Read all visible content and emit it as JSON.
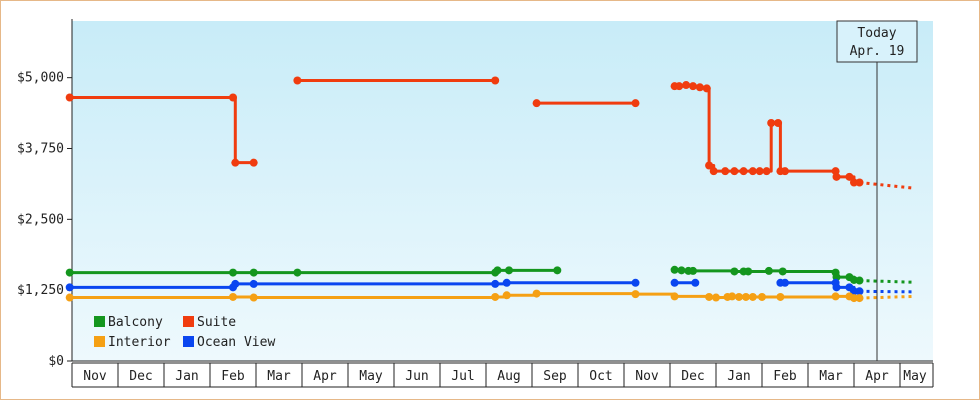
{
  "chart_data": {
    "type": "line",
    "title": "",
    "xlabel": "",
    "ylabel": "",
    "ylim": [
      0,
      6000
    ],
    "y_ticks": [
      {
        "value": 0,
        "label": "$0"
      },
      {
        "value": 1250,
        "label": "$1,250"
      },
      {
        "value": 2500,
        "label": "$2,500"
      },
      {
        "value": 3750,
        "label": "$3,750"
      },
      {
        "value": 5000,
        "label": "$5,000"
      }
    ],
    "x_months": [
      "Nov",
      "Dec",
      "Jan",
      "Feb",
      "Mar",
      "Apr",
      "May",
      "Jun",
      "Jul",
      "Aug",
      "Sep",
      "Oct",
      "Nov",
      "Dec",
      "Jan",
      "Feb",
      "Mar",
      "Apr",
      "May"
    ],
    "x_start": "Nov",
    "today": {
      "line1": "Today",
      "line2": "Apr. 19",
      "x": 17.5
    },
    "grid": false,
    "legend_position": "bottom-left",
    "background": {
      "top": "#c8ecf8",
      "bottom": "#eef9fd"
    },
    "series": [
      {
        "name": "Suite",
        "color": "#f03c0f",
        "step": true,
        "segments": [
          [
            [
              -0.05,
              4650
            ],
            [
              3.5,
              4650
            ],
            [
              3.55,
              3500
            ],
            [
              3.95,
              3500
            ]
          ],
          [
            [
              4.9,
              4950
            ],
            [
              9.2,
              4950
            ]
          ],
          [
            [
              10.1,
              4550
            ],
            [
              12.25,
              4550
            ]
          ],
          [
            [
              13.1,
              4850
            ],
            [
              13.2,
              4850
            ],
            [
              13.35,
              4870
            ],
            [
              13.5,
              4850
            ],
            [
              13.65,
              4830
            ],
            [
              13.8,
              4810
            ],
            [
              13.85,
              3450
            ],
            [
              13.95,
              3350
            ],
            [
              14.2,
              3350
            ],
            [
              14.4,
              3350
            ],
            [
              14.6,
              3350
            ],
            [
              14.8,
              3350
            ],
            [
              14.95,
              3350
            ],
            [
              15.1,
              3350
            ],
            [
              15.2,
              4200
            ],
            [
              15.35,
              4200
            ],
            [
              15.4,
              3350
            ],
            [
              15.5,
              3350
            ],
            [
              16.6,
              3350
            ],
            [
              16.62,
              3250
            ],
            [
              16.9,
              3250
            ],
            [
              17.0,
              3150
            ],
            [
              17.12,
              3150
            ]
          ]
        ],
        "projection": [
          [
            17.12,
            3150
          ],
          [
            18.3,
            3050
          ]
        ]
      },
      {
        "name": "Balcony",
        "color": "#14961e",
        "step": true,
        "segments": [
          [
            [
              -0.05,
              1560
            ],
            [
              3.5,
              1560
            ],
            [
              3.95,
              1560
            ],
            [
              4.9,
              1560
            ],
            [
              9.2,
              1560
            ],
            [
              9.25,
              1600
            ],
            [
              9.5,
              1600
            ],
            [
              10.55,
              1600
            ]
          ],
          [
            [
              13.1,
              1610
            ],
            [
              13.25,
              1600
            ],
            [
              13.4,
              1590
            ],
            [
              13.5,
              1590
            ],
            [
              14.4,
              1580
            ],
            [
              14.6,
              1580
            ],
            [
              14.7,
              1580
            ],
            [
              15.15,
              1590
            ],
            [
              15.45,
              1580
            ],
            [
              16.6,
              1560
            ],
            [
              16.62,
              1480
            ],
            [
              16.9,
              1480
            ],
            [
              17.0,
              1430
            ],
            [
              17.12,
              1420
            ]
          ]
        ],
        "projection": [
          [
            17.12,
            1420
          ],
          [
            18.3,
            1390
          ]
        ]
      },
      {
        "name": "Ocean View",
        "color": "#0a46f0",
        "step": true,
        "segments": [
          [
            [
              -0.05,
              1300
            ],
            [
              3.5,
              1300
            ],
            [
              3.55,
              1360
            ],
            [
              3.95,
              1360
            ],
            [
              9.2,
              1360
            ],
            [
              9.45,
              1380
            ],
            [
              12.25,
              1380
            ]
          ],
          [
            [
              13.1,
              1380
            ],
            [
              13.55,
              1380
            ]
          ],
          [
            [
              15.4,
              1380
            ],
            [
              15.5,
              1380
            ],
            [
              16.6,
              1380
            ],
            [
              16.62,
              1300
            ],
            [
              16.9,
              1300
            ],
            [
              17.0,
              1230
            ],
            [
              17.12,
              1230
            ]
          ]
        ],
        "projection": [
          [
            17.12,
            1230
          ],
          [
            18.3,
            1220
          ]
        ]
      },
      {
        "name": "Interior",
        "color": "#f5a014",
        "step": true,
        "segments": [
          [
            [
              -0.05,
              1120
            ],
            [
              3.5,
              1130
            ],
            [
              3.95,
              1120
            ],
            [
              9.2,
              1130
            ],
            [
              9.45,
              1160
            ],
            [
              10.1,
              1190
            ],
            [
              12.25,
              1180
            ],
            [
              13.1,
              1140
            ],
            [
              13.85,
              1130
            ],
            [
              14.0,
              1120
            ],
            [
              14.25,
              1130
            ],
            [
              14.35,
              1140
            ],
            [
              14.5,
              1130
            ],
            [
              14.65,
              1130
            ],
            [
              14.8,
              1130
            ],
            [
              15.0,
              1130
            ],
            [
              15.4,
              1130
            ],
            [
              16.6,
              1140
            ],
            [
              16.9,
              1140
            ],
            [
              17.0,
              1110
            ],
            [
              17.12,
              1110
            ]
          ]
        ],
        "projection": [
          [
            17.12,
            1110
          ],
          [
            18.3,
            1140
          ]
        ]
      }
    ],
    "legend": [
      {
        "label": "Balcony",
        "color": "#14961e"
      },
      {
        "label": "Suite",
        "color": "#f03c0f"
      },
      {
        "label": "Interior",
        "color": "#f5a014"
      },
      {
        "label": "Ocean View",
        "color": "#0a46f0"
      }
    ]
  }
}
